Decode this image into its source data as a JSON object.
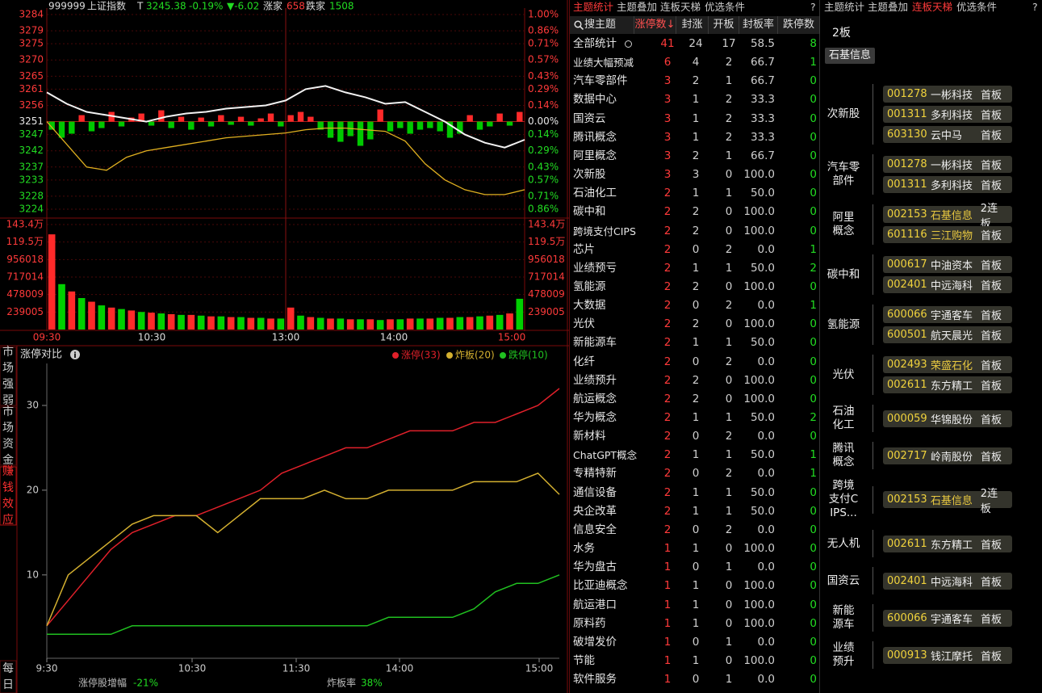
{
  "header": {
    "code": "999999",
    "name": "上证指数",
    "t": "T",
    "price": "3245.38",
    "pct": "-0.19%",
    "change": "▼-6.02",
    "up_label": "涨家",
    "up": "658",
    "down_label": "跌家",
    "down": "1508"
  },
  "intraday": {
    "type": "line",
    "xticks": [
      "09:30",
      "10:30",
      "13:00",
      "14:00",
      "15:00"
    ],
    "ylim": [
      3224,
      3284
    ],
    "yticks": [
      3284,
      3279,
      3275,
      3270,
      3265,
      3261,
      3256,
      3251,
      3247,
      3242,
      3237,
      3233,
      3228,
      3224
    ],
    "pct_labels": [
      "1.00%",
      "0.86%",
      "0.71%",
      "0.57%",
      "0.43%",
      "0.29%",
      "0.14%",
      "0.00%",
      "0.14%",
      "0.29%",
      "0.43%",
      "0.57%",
      "0.71%",
      "0.86%"
    ],
    "price": {
      "color": "#f2f2f2",
      "values": [
        3260,
        3256.5,
        3254,
        3253,
        3252,
        3251,
        3252.5,
        3253.5,
        3254,
        3255,
        3255.5,
        3256,
        3257.5,
        3261,
        3262,
        3260,
        3258.5,
        3256.5,
        3257,
        3254,
        3251,
        3247,
        3244.5,
        3243,
        3245.4
      ]
    },
    "average": {
      "color": "#e0b020",
      "values": [
        3251,
        3244,
        3237,
        3236,
        3240,
        3242,
        3243,
        3244,
        3245,
        3246,
        3246.5,
        3247,
        3247.5,
        3248.5,
        3249,
        3249,
        3248.5,
        3248,
        3245,
        3238,
        3233,
        3230,
        3228.5,
        3228.5,
        3230
      ]
    },
    "breadth": {
      "up_color": "#ff2a2a",
      "down_color": "#00c800",
      "values": [
        -10,
        -20,
        -15,
        8,
        -12,
        -8,
        12,
        -6,
        5,
        10,
        -5,
        14,
        -8,
        6,
        -10,
        5,
        -6,
        8,
        -4,
        6,
        -5,
        4,
        10,
        -6,
        8,
        12,
        6,
        -10,
        -20,
        -25,
        -18,
        -30,
        -22,
        15,
        -12,
        -8,
        -15,
        -10,
        -8,
        -12,
        -20,
        -15,
        8,
        -10,
        -6,
        10,
        -5,
        12
      ]
    },
    "volume": {
      "ylim": [
        0,
        1434000
      ],
      "yticks": [
        {
          "value": 1434000,
          "label": "143.4万"
        },
        {
          "value": 1195000,
          "label": "119.5万"
        },
        956018,
        717014,
        478009,
        239005
      ],
      "colors": [
        "#ff2a2a",
        "#00d000"
      ],
      "values": [
        1300000,
        620000,
        520000,
        430000,
        380000,
        330000,
        300000,
        280000,
        260000,
        240000,
        230000,
        220000,
        210000,
        200000,
        200000,
        190000,
        180000,
        180000,
        170000,
        170000,
        160000,
        160000,
        150000,
        150000,
        300000,
        190000,
        170000,
        160000,
        150000,
        150000,
        140000,
        140000,
        140000,
        130000,
        140000,
        140000,
        150000,
        150000,
        150000,
        160000,
        160000,
        170000,
        170000,
        180000,
        190000,
        200000,
        220000,
        420000
      ]
    }
  },
  "limit_chart": {
    "type": "line",
    "tabs": [
      "市场强弱",
      "市场资金",
      "赚钱效应",
      "每日"
    ],
    "active_tab": 2,
    "title": "涨停对比",
    "xticks": [
      "9:30",
      "10:30",
      "11:30",
      "14:00",
      "15:00"
    ],
    "ylim": [
      1.5,
      34
    ],
    "yticks": [
      10,
      20,
      30
    ],
    "series": [
      {
        "name": "涨停(33)",
        "color": "#e0202a",
        "values": [
          4,
          7,
          10,
          13,
          15,
          16,
          17,
          17,
          18,
          19,
          20,
          22,
          23,
          24,
          25,
          25,
          26,
          27,
          27,
          27,
          28,
          28,
          29,
          30,
          32
        ]
      },
      {
        "name": "炸板(20)",
        "color": "#d4b030",
        "values": [
          4,
          10,
          12,
          14,
          16,
          17,
          17,
          17,
          15,
          17,
          19,
          19,
          19,
          20,
          19,
          19,
          20,
          20,
          20,
          20,
          21,
          21,
          21,
          22,
          19.5
        ]
      },
      {
        "name": "跌停(10)",
        "color": "#20c020",
        "values": [
          3,
          3,
          3,
          3,
          4,
          4,
          4,
          4,
          4,
          4,
          4,
          4,
          4,
          4,
          4,
          4,
          5,
          5,
          5,
          5,
          6,
          8,
          9,
          9,
          10
        ]
      }
    ],
    "footer": [
      {
        "label": "涨停股增幅",
        "value": "-21%"
      },
      {
        "label": "炸板率",
        "value": "38%"
      }
    ]
  },
  "table": {
    "tabs": [
      "主题统计",
      "主题叠加",
      "连板天梯",
      "优选条件"
    ],
    "active_tab": 0,
    "help": "?",
    "columns": [
      "搜主题",
      "涨停数↓",
      "封涨",
      "开板",
      "封板率",
      "跌停数"
    ],
    "rows": [
      [
        "全部统计",
        "41",
        "24",
        "17",
        "58.5",
        "8"
      ],
      [
        "业绩大幅预减",
        "6",
        "4",
        "2",
        "66.7",
        "1"
      ],
      [
        "汽车零部件",
        "3",
        "2",
        "1",
        "66.7",
        "0"
      ],
      [
        "数据中心",
        "3",
        "1",
        "2",
        "33.3",
        "0"
      ],
      [
        "国资云",
        "3",
        "1",
        "2",
        "33.3",
        "0"
      ],
      [
        "腾讯概念",
        "3",
        "1",
        "2",
        "33.3",
        "0"
      ],
      [
        "阿里概念",
        "3",
        "2",
        "1",
        "66.7",
        "0"
      ],
      [
        "次新股",
        "3",
        "3",
        "0",
        "100.0",
        "0"
      ],
      [
        "石油化工",
        "2",
        "1",
        "1",
        "50.0",
        "0"
      ],
      [
        "碳中和",
        "2",
        "2",
        "0",
        "100.0",
        "0"
      ],
      [
        "跨境支付CIPS",
        "2",
        "2",
        "0",
        "100.0",
        "0"
      ],
      [
        "芯片",
        "2",
        "0",
        "2",
        "0.0",
        "1"
      ],
      [
        "业绩预亏",
        "2",
        "1",
        "1",
        "50.0",
        "2"
      ],
      [
        "氢能源",
        "2",
        "2",
        "0",
        "100.0",
        "0"
      ],
      [
        "大数据",
        "2",
        "0",
        "2",
        "0.0",
        "1"
      ],
      [
        "光伏",
        "2",
        "2",
        "0",
        "100.0",
        "0"
      ],
      [
        "新能源车",
        "2",
        "1",
        "1",
        "50.0",
        "0"
      ],
      [
        "化纤",
        "2",
        "0",
        "2",
        "0.0",
        "0"
      ],
      [
        "业绩预升",
        "2",
        "2",
        "0",
        "100.0",
        "0"
      ],
      [
        "航运概念",
        "2",
        "2",
        "0",
        "100.0",
        "0"
      ],
      [
        "华为概念",
        "2",
        "1",
        "1",
        "50.0",
        "2"
      ],
      [
        "新材料",
        "2",
        "0",
        "2",
        "0.0",
        "0"
      ],
      [
        "ChatGPT概念",
        "2",
        "1",
        "1",
        "50.0",
        "1"
      ],
      [
        "专精特新",
        "2",
        "0",
        "2",
        "0.0",
        "1"
      ],
      [
        "通信设备",
        "2",
        "1",
        "1",
        "50.0",
        "0"
      ],
      [
        "央企改革",
        "2",
        "1",
        "1",
        "50.0",
        "0"
      ],
      [
        "信息安全",
        "2",
        "0",
        "2",
        "0.0",
        "0"
      ],
      [
        "水务",
        "1",
        "1",
        "0",
        "100.0",
        "0"
      ],
      [
        "华为盘古",
        "1",
        "0",
        "1",
        "0.0",
        "0"
      ],
      [
        "比亚迪概念",
        "1",
        "1",
        "0",
        "100.0",
        "0"
      ],
      [
        "航运港口",
        "1",
        "1",
        "0",
        "100.0",
        "0"
      ],
      [
        "原料药",
        "1",
        "1",
        "0",
        "100.0",
        "0"
      ],
      [
        "破增发价",
        "1",
        "0",
        "1",
        "0.0",
        "0"
      ],
      [
        "节能",
        "1",
        "1",
        "0",
        "100.0",
        "0"
      ],
      [
        "软件服务",
        "1",
        "0",
        "1",
        "0.0",
        "0"
      ]
    ]
  },
  "ladder": {
    "tabs": [
      "主题统计",
      "主题叠加",
      "连板天梯",
      "优选条件"
    ],
    "active_tab": 2,
    "help": "?",
    "level": "2板",
    "chip": "石基信息",
    "groups": [
      {
        "label": "次新股",
        "stocks": [
          {
            "code": "001278",
            "name": "一彬科技",
            "tag": "首板"
          },
          {
            "code": "001311",
            "name": "多利科技",
            "tag": "首板"
          },
          {
            "code": "603130",
            "name": "云中马",
            "tag": "首板"
          }
        ]
      },
      {
        "label": "汽车零部件",
        "stocks": [
          {
            "code": "001278",
            "name": "一彬科技",
            "tag": "首板"
          },
          {
            "code": "001311",
            "name": "多利科技",
            "tag": "首板"
          }
        ]
      },
      {
        "label": "阿里概念",
        "stocks": [
          {
            "code": "002153",
            "name": "石基信息",
            "tag": "2连板",
            "color": "#e8c840"
          },
          {
            "code": "601116",
            "name": "三江购物",
            "tag": "首板",
            "color": "#e8c840"
          }
        ]
      },
      {
        "label": "碳中和",
        "stocks": [
          {
            "code": "000617",
            "name": "中油资本",
            "tag": "首板"
          },
          {
            "code": "002401",
            "name": "中远海科",
            "tag": "首板"
          }
        ]
      },
      {
        "label": "氢能源",
        "stocks": [
          {
            "code": "600066",
            "name": "宇通客车",
            "tag": "首板"
          },
          {
            "code": "600501",
            "name": "航天晨光",
            "tag": "首板"
          }
        ]
      },
      {
        "label": "光伏",
        "stocks": [
          {
            "code": "002493",
            "name": "荣盛石化",
            "tag": "首板",
            "color": "#e8c840"
          },
          {
            "code": "002611",
            "name": "东方精工",
            "tag": "首板"
          }
        ]
      },
      {
        "label": "石油化工",
        "stocks": [
          {
            "code": "000059",
            "name": "华锦股份",
            "tag": "首板"
          }
        ]
      },
      {
        "label": "腾讯概念",
        "stocks": [
          {
            "code": "002717",
            "name": "岭南股份",
            "tag": "首板"
          }
        ]
      },
      {
        "label": "跨境支付CIPS...",
        "stocks": [
          {
            "code": "002153",
            "name": "石基信息",
            "tag": "2连板",
            "color": "#e8c840"
          }
        ]
      },
      {
        "label": "无人机",
        "stocks": [
          {
            "code": "002611",
            "name": "东方精工",
            "tag": "首板"
          }
        ]
      },
      {
        "label": "国资云",
        "stocks": [
          {
            "code": "002401",
            "name": "中远海科",
            "tag": "首板"
          }
        ]
      },
      {
        "label": "新能源车",
        "stocks": [
          {
            "code": "600066",
            "name": "宇通客车",
            "tag": "首板"
          }
        ]
      },
      {
        "label": "业绩预升",
        "stocks": [
          {
            "code": "000913",
            "name": "钱江摩托",
            "tag": "首板"
          }
        ]
      }
    ]
  }
}
